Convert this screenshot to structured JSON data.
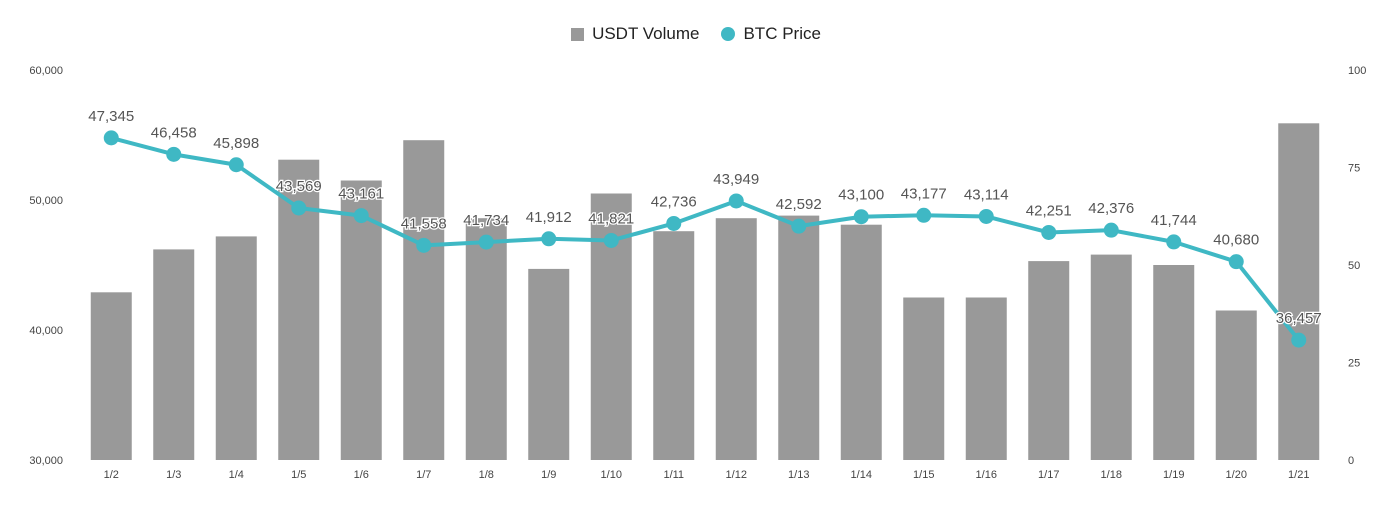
{
  "chart_data": {
    "type": "bar",
    "categories": [
      "1/2",
      "1/3",
      "1/4",
      "1/5",
      "1/6",
      "1/7",
      "1/8",
      "1/9",
      "1/10",
      "1/11",
      "1/12",
      "1/13",
      "1/14",
      "1/15",
      "1/16",
      "1/17",
      "1/18",
      "1/19",
      "1/20",
      "1/21"
    ],
    "series": [
      {
        "name": "USDT Volume",
        "type": "bar",
        "axis": "left",
        "color": "#999999",
        "values": [
          42900,
          46200,
          47200,
          53100,
          51500,
          54600,
          48600,
          44700,
          50500,
          47600,
          48600,
          48800,
          48100,
          42500,
          42500,
          45300,
          45800,
          45000,
          41500,
          55900
        ]
      },
      {
        "name": "BTC Price",
        "type": "line",
        "axis": "right",
        "color": "#3fb8c4",
        "values": [
          47345,
          46458,
          45898,
          43569,
          43161,
          41558,
          41734,
          41912,
          41821,
          42736,
          43949,
          42592,
          43100,
          43177,
          43114,
          42251,
          42376,
          41744,
          40680,
          36457
        ],
        "data_labels": [
          "47,345",
          "46,458",
          "45,898",
          "43,569",
          "43,161",
          "41,558",
          "41,734",
          "41,912",
          "41,821",
          "42,736",
          "43,949",
          "42,592",
          "43,100",
          "43,177",
          "43,114",
          "42,251",
          "42,376",
          "41,744",
          "40,680",
          "36,457"
        ]
      }
    ],
    "y_left": {
      "ylim": [
        30000,
        60000
      ],
      "ticks": [
        "30,000",
        "40,000",
        "50,000",
        "60,000"
      ]
    },
    "y_right": {
      "ticks": [
        "0",
        "25",
        "50",
        "75",
        "100"
      ]
    },
    "legend": {
      "position": "top-center"
    },
    "grid": false
  }
}
